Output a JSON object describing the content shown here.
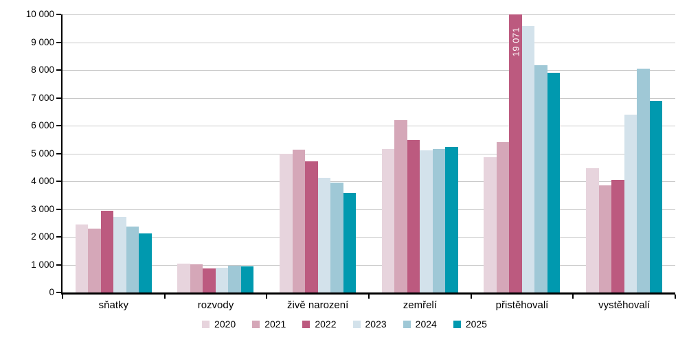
{
  "chart_data": {
    "type": "bar",
    "title": "",
    "categories": [
      "sňatky",
      "rozvody",
      "živě narození",
      "zemřelí",
      "přistěhovalí",
      "vystěhovalí"
    ],
    "series": [
      {
        "name": "2020",
        "color": "#E7D4DD",
        "values": [
          2440,
          1040,
          4990,
          5160,
          4860,
          4460
        ]
      },
      {
        "name": "2021",
        "color": "#D5A7B8",
        "values": [
          2300,
          1010,
          5140,
          6190,
          5400,
          3840
        ]
      },
      {
        "name": "2022",
        "color": "#BC5A7F",
        "values": [
          2950,
          860,
          4720,
          5480,
          19071,
          4060
        ]
      },
      {
        "name": "2023",
        "color": "#D3E2EB",
        "values": [
          2720,
          900,
          4120,
          5120,
          9570,
          6390
        ]
      },
      {
        "name": "2024",
        "color": "#9FC8D6",
        "values": [
          2360,
          960,
          3960,
          5150,
          8170,
          8040
        ]
      },
      {
        "name": "2025",
        "color": "#0099AF",
        "values": [
          2120,
          930,
          3570,
          5230,
          7910,
          6900
        ]
      }
    ],
    "ylim": [
      0,
      10000
    ],
    "yticks": [
      0,
      1000,
      2000,
      3000,
      4000,
      5000,
      6000,
      7000,
      8000,
      9000,
      10000
    ],
    "yticklabels": [
      "0",
      "1 000",
      "2 000",
      "3 000",
      "4 000",
      "5 000",
      "6 000",
      "7 000",
      "8 000",
      "9 000",
      "10 000"
    ],
    "grid": true,
    "gridline_color": "#C8C8C8",
    "axis_color": "#000000",
    "legend_position": "bottom",
    "legend_labels": [
      "2020",
      "2021",
      "2022",
      "2023",
      "2024",
      "2025"
    ],
    "data_labels": [
      {
        "series": "2022",
        "category": "přistěhovalí",
        "text": "19 071",
        "color": "#FFFFFF",
        "rotation": "vertical-bottom-up"
      }
    ]
  }
}
